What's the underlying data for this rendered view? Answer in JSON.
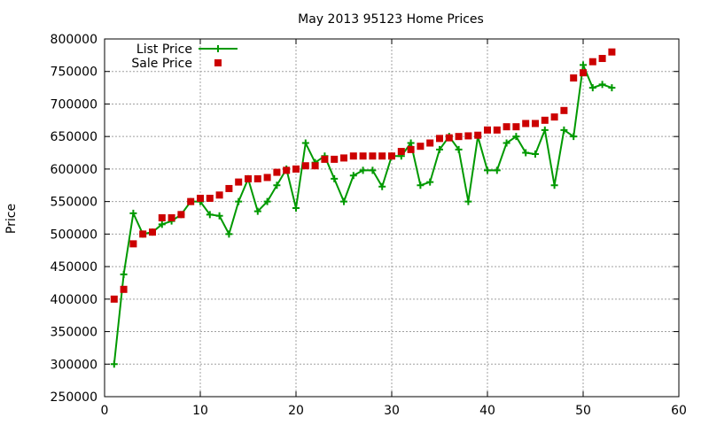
{
  "chart_data": {
    "type": "line",
    "title": "May 2013 95123 Home Prices",
    "xlabel": "",
    "ylabel": "Price",
    "xlim": [
      0,
      60
    ],
    "ylim": [
      250000,
      800000
    ],
    "x_ticks": [
      0,
      10,
      20,
      30,
      40,
      50,
      60
    ],
    "y_ticks": [
      250000,
      300000,
      350000,
      400000,
      450000,
      500000,
      550000,
      600000,
      650000,
      700000,
      750000,
      800000
    ],
    "grid": true,
    "legend_position": "top-left",
    "series": [
      {
        "name": "List Price",
        "style": "line-with-plus-markers",
        "color": "#009900",
        "x": [
          1,
          2,
          3,
          4,
          5,
          6,
          7,
          8,
          9,
          10,
          11,
          12,
          13,
          14,
          15,
          16,
          17,
          18,
          19,
          20,
          21,
          22,
          23,
          24,
          25,
          26,
          27,
          28,
          29,
          30,
          31,
          32,
          33,
          34,
          35,
          36,
          37,
          38,
          39,
          40,
          41,
          42,
          43,
          44,
          45,
          46,
          47,
          48,
          49,
          50,
          51,
          52,
          53
        ],
        "y": [
          300000,
          438000,
          532000,
          500000,
          503000,
          515000,
          520000,
          530000,
          550000,
          550000,
          530000,
          528000,
          500000,
          550000,
          585000,
          535000,
          550000,
          575000,
          600000,
          540000,
          640000,
          610000,
          620000,
          585000,
          550000,
          590000,
          598000,
          598000,
          573000,
          620000,
          620000,
          640000,
          575000,
          580000,
          630000,
          650000,
          630000,
          550000,
          650000,
          598000,
          598000,
          640000,
          650000,
          625000,
          623000,
          660000,
          575000,
          660000,
          650000,
          760000,
          725000,
          730000,
          725000
        ]
      },
      {
        "name": "Sale Price",
        "style": "square-markers",
        "color": "#cc0000",
        "x": [
          1,
          2,
          3,
          4,
          5,
          6,
          7,
          8,
          9,
          10,
          11,
          12,
          13,
          14,
          15,
          16,
          17,
          18,
          19,
          20,
          21,
          22,
          23,
          24,
          25,
          26,
          27,
          28,
          29,
          30,
          31,
          32,
          33,
          34,
          35,
          36,
          37,
          38,
          39,
          40,
          41,
          42,
          43,
          44,
          45,
          46,
          47,
          48,
          49,
          50,
          51,
          52,
          53
        ],
        "y": [
          400000,
          415000,
          485000,
          500000,
          503000,
          525000,
          525000,
          530000,
          550000,
          555000,
          555000,
          560000,
          570000,
          580000,
          585000,
          585000,
          587000,
          595000,
          598000,
          600000,
          605000,
          605000,
          615000,
          615000,
          617000,
          620000,
          620000,
          620000,
          620000,
          620000,
          627000,
          630000,
          635000,
          640000,
          647000,
          648000,
          650000,
          651000,
          652000,
          660000,
          660000,
          665000,
          665000,
          670000,
          670000,
          675000,
          680000,
          690000,
          740000,
          748000,
          765000,
          770000,
          780000
        ]
      }
    ]
  }
}
